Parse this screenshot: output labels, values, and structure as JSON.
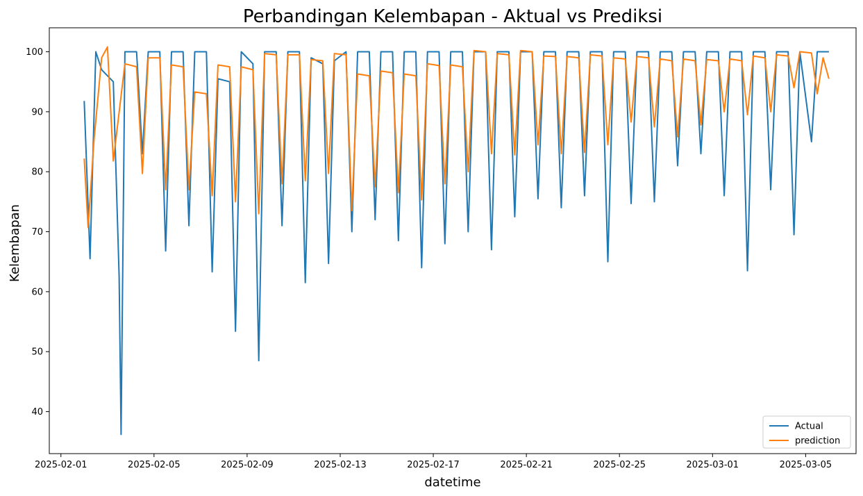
{
  "chart_data": {
    "type": "line",
    "title": "Perbandingan Kelembapan - Aktual vs Prediksi",
    "xlabel": "datetime",
    "ylabel": "Kelembapan",
    "xlim": [
      "2025-01-31T12:00",
      "2025-03-07T04:00"
    ],
    "ylim": [
      33,
      104
    ],
    "x_ticks": [
      "2025-02-01",
      "2025-02-05",
      "2025-02-09",
      "2025-02-13",
      "2025-02-17",
      "2025-02-21",
      "2025-02-25",
      "2025-03-01",
      "2025-03-05"
    ],
    "y_ticks": [
      40,
      50,
      60,
      70,
      80,
      90,
      100
    ],
    "grid": false,
    "legend_position": "lower right",
    "colors": {
      "Actual": "#1f77b4",
      "prediction": "#ff7f0e"
    },
    "series": [
      {
        "name": "Actual",
        "points": [
          [
            "2025-02-02T00:00",
            91.8
          ],
          [
            "2025-02-02T06:00",
            65.5
          ],
          [
            "2025-02-02T12:00",
            100.0
          ],
          [
            "2025-02-02T18:00",
            97.0
          ],
          [
            "2025-02-03T06:00",
            95.0
          ],
          [
            "2025-02-03T12:00",
            62.5
          ],
          [
            "2025-02-03T14:00",
            36.2
          ],
          [
            "2025-02-03T18:00",
            100.0
          ],
          [
            "2025-02-04T06:00",
            100.0
          ],
          [
            "2025-02-04T12:00",
            83.0
          ],
          [
            "2025-02-04T18:00",
            100.0
          ],
          [
            "2025-02-05T06:00",
            100.0
          ],
          [
            "2025-02-05T12:00",
            66.8
          ],
          [
            "2025-02-05T18:00",
            100.0
          ],
          [
            "2025-02-06T06:00",
            100.0
          ],
          [
            "2025-02-06T12:00",
            71.0
          ],
          [
            "2025-02-06T18:00",
            100.0
          ],
          [
            "2025-02-07T06:00",
            100.0
          ],
          [
            "2025-02-07T12:00",
            63.3
          ],
          [
            "2025-02-07T18:00",
            95.5
          ],
          [
            "2025-02-08T06:00",
            95.0
          ],
          [
            "2025-02-08T12:00",
            53.4
          ],
          [
            "2025-02-08T18:00",
            100.0
          ],
          [
            "2025-02-09T06:00",
            98.0
          ],
          [
            "2025-02-09T12:00",
            48.5
          ],
          [
            "2025-02-09T18:00",
            100.0
          ],
          [
            "2025-02-10T06:00",
            100.0
          ],
          [
            "2025-02-10T12:00",
            71.0
          ],
          [
            "2025-02-10T18:00",
            100.0
          ],
          [
            "2025-02-11T06:00",
            100.0
          ],
          [
            "2025-02-11T12:00",
            61.5
          ],
          [
            "2025-02-11T18:00",
            99.0
          ],
          [
            "2025-02-12T06:00",
            98.0
          ],
          [
            "2025-02-12T12:00",
            64.7
          ],
          [
            "2025-02-12T18:00",
            98.5
          ],
          [
            "2025-02-13T06:00",
            100.0
          ],
          [
            "2025-02-13T12:00",
            70.0
          ],
          [
            "2025-02-13T18:00",
            100.0
          ],
          [
            "2025-02-14T06:00",
            100.0
          ],
          [
            "2025-02-14T12:00",
            72.0
          ],
          [
            "2025-02-14T18:00",
            100.0
          ],
          [
            "2025-02-15T06:00",
            100.0
          ],
          [
            "2025-02-15T12:00",
            68.5
          ],
          [
            "2025-02-15T18:00",
            100.0
          ],
          [
            "2025-02-16T06:00",
            100.0
          ],
          [
            "2025-02-16T12:00",
            64.0
          ],
          [
            "2025-02-16T18:00",
            100.0
          ],
          [
            "2025-02-17T06:00",
            100.0
          ],
          [
            "2025-02-17T12:00",
            68.0
          ],
          [
            "2025-02-17T18:00",
            100.0
          ],
          [
            "2025-02-18T06:00",
            100.0
          ],
          [
            "2025-02-18T12:00",
            70.0
          ],
          [
            "2025-02-18T18:00",
            100.0
          ],
          [
            "2025-02-19T06:00",
            100.0
          ],
          [
            "2025-02-19T12:00",
            67.0
          ],
          [
            "2025-02-19T18:00",
            100.0
          ],
          [
            "2025-02-20T06:00",
            100.0
          ],
          [
            "2025-02-20T12:00",
            72.5
          ],
          [
            "2025-02-20T18:00",
            100.0
          ],
          [
            "2025-02-21T06:00",
            100.0
          ],
          [
            "2025-02-21T12:00",
            75.5
          ],
          [
            "2025-02-21T18:00",
            100.0
          ],
          [
            "2025-02-22T06:00",
            100.0
          ],
          [
            "2025-02-22T12:00",
            74.0
          ],
          [
            "2025-02-22T18:00",
            100.0
          ],
          [
            "2025-02-23T06:00",
            100.0
          ],
          [
            "2025-02-23T12:00",
            76.0
          ],
          [
            "2025-02-23T18:00",
            100.0
          ],
          [
            "2025-02-24T06:00",
            100.0
          ],
          [
            "2025-02-24T12:00",
            65.0
          ],
          [
            "2025-02-24T18:00",
            100.0
          ],
          [
            "2025-02-25T06:00",
            100.0
          ],
          [
            "2025-02-25T12:00",
            74.7
          ],
          [
            "2025-02-25T18:00",
            100.0
          ],
          [
            "2025-02-26T06:00",
            100.0
          ],
          [
            "2025-02-26T12:00",
            75.0
          ],
          [
            "2025-02-26T18:00",
            100.0
          ],
          [
            "2025-02-27T06:00",
            100.0
          ],
          [
            "2025-02-27T12:00",
            81.0
          ],
          [
            "2025-02-27T18:00",
            100.0
          ],
          [
            "2025-02-28T06:00",
            100.0
          ],
          [
            "2025-02-28T12:00",
            83.0
          ],
          [
            "2025-02-28T18:00",
            100.0
          ],
          [
            "2025-03-01T06:00",
            100.0
          ],
          [
            "2025-03-01T12:00",
            76.0
          ],
          [
            "2025-03-01T18:00",
            100.0
          ],
          [
            "2025-03-02T06:00",
            100.0
          ],
          [
            "2025-03-02T12:00",
            63.5
          ],
          [
            "2025-03-02T18:00",
            100.0
          ],
          [
            "2025-03-03T06:00",
            100.0
          ],
          [
            "2025-03-03T12:00",
            77.0
          ],
          [
            "2025-03-03T18:00",
            100.0
          ],
          [
            "2025-03-04T06:00",
            100.0
          ],
          [
            "2025-03-04T12:00",
            69.5
          ],
          [
            "2025-03-04T18:00",
            100.0
          ],
          [
            "2025-03-05T06:00",
            85.0
          ],
          [
            "2025-03-05T12:00",
            100.0
          ],
          [
            "2025-03-06T00:00",
            100.0
          ]
        ]
      },
      {
        "name": "prediction",
        "points": [
          [
            "2025-02-02T00:00",
            82.2
          ],
          [
            "2025-02-02T04:00",
            70.7
          ],
          [
            "2025-02-02T10:00",
            85.0
          ],
          [
            "2025-02-02T18:00",
            99.0
          ],
          [
            "2025-02-03T00:00",
            100.8
          ],
          [
            "2025-02-03T06:00",
            81.8
          ],
          [
            "2025-02-03T18:00",
            98.0
          ],
          [
            "2025-02-04T06:00",
            97.5
          ],
          [
            "2025-02-04T12:00",
            79.7
          ],
          [
            "2025-02-04T18:00",
            99.0
          ],
          [
            "2025-02-05T06:00",
            99.0
          ],
          [
            "2025-02-05T12:00",
            77.0
          ],
          [
            "2025-02-05T18:00",
            97.8
          ],
          [
            "2025-02-06T06:00",
            97.5
          ],
          [
            "2025-02-06T12:00",
            77.0
          ],
          [
            "2025-02-06T18:00",
            93.3
          ],
          [
            "2025-02-07T06:00",
            93.0
          ],
          [
            "2025-02-07T12:00",
            76.0
          ],
          [
            "2025-02-07T18:00",
            97.8
          ],
          [
            "2025-02-08T06:00",
            97.5
          ],
          [
            "2025-02-08T12:00",
            75.0
          ],
          [
            "2025-02-08T18:00",
            97.5
          ],
          [
            "2025-02-09T06:00",
            97.0
          ],
          [
            "2025-02-09T12:00",
            73.0
          ],
          [
            "2025-02-09T18:00",
            99.7
          ],
          [
            "2025-02-10T06:00",
            99.5
          ],
          [
            "2025-02-10T12:00",
            78.0
          ],
          [
            "2025-02-10T18:00",
            99.5
          ],
          [
            "2025-02-11T06:00",
            99.5
          ],
          [
            "2025-02-11T12:00",
            78.5
          ],
          [
            "2025-02-11T18:00",
            98.7
          ],
          [
            "2025-02-12T06:00",
            98.5
          ],
          [
            "2025-02-12T12:00",
            79.7
          ],
          [
            "2025-02-12T18:00",
            99.7
          ],
          [
            "2025-02-13T06:00",
            99.5
          ],
          [
            "2025-02-13T12:00",
            73.5
          ],
          [
            "2025-02-13T18:00",
            96.3
          ],
          [
            "2025-02-14T06:00",
            96.0
          ],
          [
            "2025-02-14T12:00",
            77.5
          ],
          [
            "2025-02-14T18:00",
            96.8
          ],
          [
            "2025-02-15T06:00",
            96.5
          ],
          [
            "2025-02-15T12:00",
            76.5
          ],
          [
            "2025-02-15T18:00",
            96.3
          ],
          [
            "2025-02-16T06:00",
            96.0
          ],
          [
            "2025-02-16T12:00",
            75.3
          ],
          [
            "2025-02-16T18:00",
            98.0
          ],
          [
            "2025-02-17T06:00",
            97.7
          ],
          [
            "2025-02-17T12:00",
            78.0
          ],
          [
            "2025-02-17T18:00",
            97.8
          ],
          [
            "2025-02-18T06:00",
            97.5
          ],
          [
            "2025-02-18T12:00",
            80.0
          ],
          [
            "2025-02-18T18:00",
            100.2
          ],
          [
            "2025-02-19T06:00",
            100.0
          ],
          [
            "2025-02-19T12:00",
            83.0
          ],
          [
            "2025-02-19T18:00",
            99.7
          ],
          [
            "2025-02-20T06:00",
            99.5
          ],
          [
            "2025-02-20T12:00",
            82.8
          ],
          [
            "2025-02-20T18:00",
            100.2
          ],
          [
            "2025-02-21T06:00",
            100.0
          ],
          [
            "2025-02-21T12:00",
            84.5
          ],
          [
            "2025-02-21T18:00",
            99.3
          ],
          [
            "2025-02-22T06:00",
            99.2
          ],
          [
            "2025-02-22T12:00",
            83.0
          ],
          [
            "2025-02-22T18:00",
            99.2
          ],
          [
            "2025-02-23T06:00",
            99.0
          ],
          [
            "2025-02-23T12:00",
            83.2
          ],
          [
            "2025-02-23T18:00",
            99.5
          ],
          [
            "2025-02-24T06:00",
            99.3
          ],
          [
            "2025-02-24T12:00",
            84.5
          ],
          [
            "2025-02-24T18:00",
            99.0
          ],
          [
            "2025-02-25T06:00",
            98.8
          ],
          [
            "2025-02-25T12:00",
            88.3
          ],
          [
            "2025-02-25T18:00",
            99.2
          ],
          [
            "2025-02-26T06:00",
            99.0
          ],
          [
            "2025-02-26T12:00",
            87.5
          ],
          [
            "2025-02-26T18:00",
            98.8
          ],
          [
            "2025-02-27T06:00",
            98.5
          ],
          [
            "2025-02-27T12:00",
            85.8
          ],
          [
            "2025-02-27T18:00",
            98.8
          ],
          [
            "2025-02-28T06:00",
            98.5
          ],
          [
            "2025-02-28T12:00",
            87.8
          ],
          [
            "2025-02-28T18:00",
            98.7
          ],
          [
            "2025-03-01T06:00",
            98.5
          ],
          [
            "2025-03-01T12:00",
            90.0
          ],
          [
            "2025-03-01T18:00",
            98.8
          ],
          [
            "2025-03-02T06:00",
            98.5
          ],
          [
            "2025-03-02T12:00",
            89.5
          ],
          [
            "2025-03-02T18:00",
            99.3
          ],
          [
            "2025-03-03T06:00",
            99.0
          ],
          [
            "2025-03-03T12:00",
            90.0
          ],
          [
            "2025-03-03T18:00",
            99.5
          ],
          [
            "2025-03-04T06:00",
            99.3
          ],
          [
            "2025-03-04T12:00",
            94.0
          ],
          [
            "2025-03-04T18:00",
            100.0
          ],
          [
            "2025-03-05T06:00",
            99.8
          ],
          [
            "2025-03-05T12:00",
            93.0
          ],
          [
            "2025-03-05T18:00",
            99.0
          ],
          [
            "2025-03-06T00:00",
            95.5
          ]
        ]
      }
    ]
  }
}
